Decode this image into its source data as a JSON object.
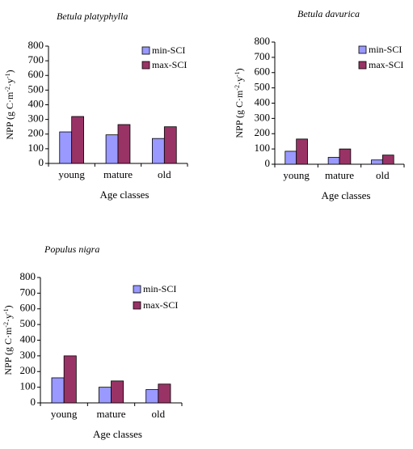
{
  "colors": {
    "min": "#9999ff",
    "max": "#993366",
    "axis": "#000000"
  },
  "chart_data": [
    {
      "type": "bar",
      "title": "Betula platyphylla",
      "xlabel": "Age classes",
      "ylabel_main": "NPP (g C",
      "ylabel_sup1": "-2",
      "ylabel_sup2": "-1",
      "ylim": [
        0,
        800
      ],
      "yticks": [
        "0",
        "100",
        "200",
        "300",
        "400",
        "500",
        "600",
        "700",
        "800"
      ],
      "categories": [
        "young",
        "mature",
        "old"
      ],
      "series": [
        {
          "name": "min-SCI",
          "values": [
            215,
            195,
            170
          ]
        },
        {
          "name": "max-SCI",
          "values": [
            320,
            265,
            250
          ]
        }
      ]
    },
    {
      "type": "bar",
      "title": "Betula davurica",
      "xlabel": "Age classes",
      "ylabel_main": "NPP (g C",
      "ylabel_sup1": "-2",
      "ylabel_sup2": "-1",
      "ylim": [
        0,
        800
      ],
      "yticks": [
        "0",
        "100",
        "200",
        "300",
        "400",
        "500",
        "600",
        "700",
        "800"
      ],
      "categories": [
        "young",
        "mature",
        "old"
      ],
      "series": [
        {
          "name": "min-SCI",
          "values": [
            85,
            45,
            28
          ]
        },
        {
          "name": "max-SCI",
          "values": [
            165,
            100,
            60
          ]
        }
      ]
    },
    {
      "type": "bar",
      "title": "Populus nigra",
      "xlabel": "Age classes",
      "ylabel_main": "NPP (g C",
      "ylabel_sup1": "-2",
      "ylabel_sup2": "-1",
      "ylim": [
        0,
        800
      ],
      "yticks": [
        "0",
        "100",
        "200",
        "300",
        "400",
        "500",
        "600",
        "700",
        "800"
      ],
      "categories": [
        "young",
        "mature",
        "old"
      ],
      "series": [
        {
          "name": "min-SCI",
          "values": [
            160,
            100,
            85
          ]
        },
        {
          "name": "max-SCI",
          "values": [
            300,
            140,
            120
          ]
        }
      ]
    }
  ]
}
